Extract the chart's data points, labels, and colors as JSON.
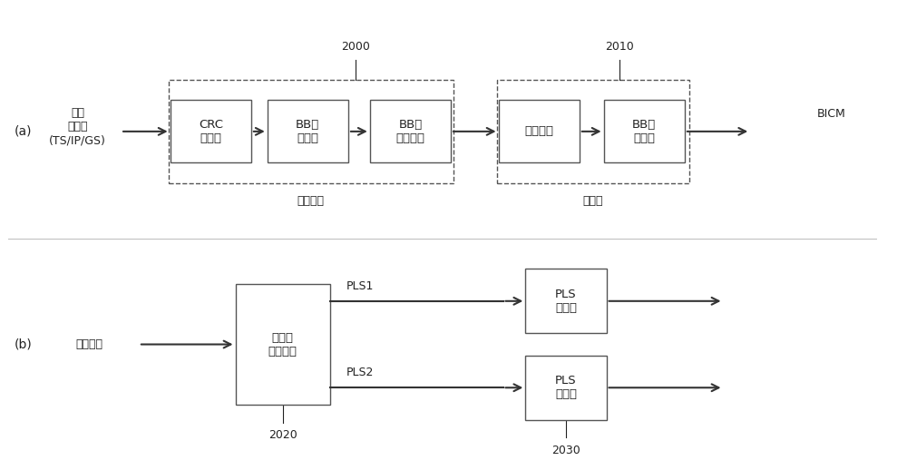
{
  "bg_color": "#ffffff",
  "box_facecolor": "white",
  "box_edgecolor": "#555555",
  "dashed_edgecolor": "#555555",
  "arrow_color": "#333333",
  "text_color": "#222222",
  "title_a": "(a)",
  "title_b": "(b)",
  "label_input_a": "单个\n输入流\n(TS/IP/GS)",
  "label_input_b": "管理信息",
  "boxes_a": [
    "CRC\n编码器",
    "BB帧\n切分器",
    "BB帧\n报头插入",
    "填充插入",
    "BB帧\n加扰器"
  ],
  "boxes_b_main": [
    "物理层\n信令生成"
  ],
  "boxes_b_pls": [
    "PLS\n加扰器",
    "PLS\n加扰器"
  ],
  "label_mode": "模式适配",
  "label_stream": "流适配",
  "label_2000": "2000",
  "label_2010": "2010",
  "label_2020": "2020",
  "label_2030": "2030",
  "label_bicm": "BICM",
  "label_pls1": "PLS1",
  "label_pls2": "PLS2"
}
